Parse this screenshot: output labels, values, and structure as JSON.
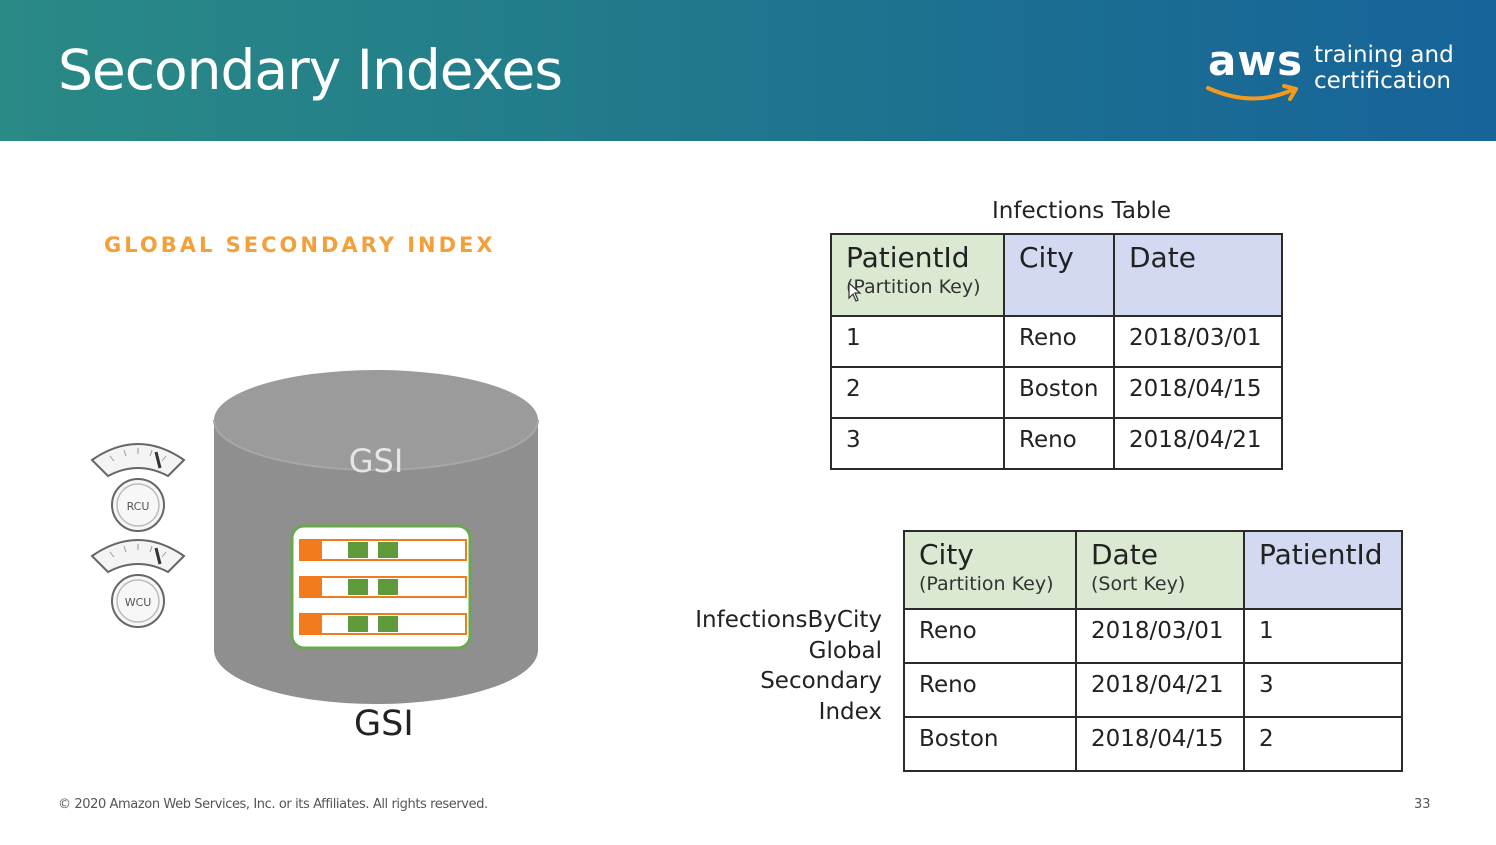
{
  "slide": {
    "title": "Secondary Indexes",
    "section_label": "GLOBAL SECONDARY INDEX",
    "logo": {
      "brand": "aws",
      "line1": "training and",
      "line2": "certification"
    },
    "colors": {
      "header_start": "#2a8a86",
      "header_end": "#17649a",
      "accent_orange": "#f4a03a",
      "cylinder": "#9b9b9b",
      "item_green": "#5e9a3a",
      "item_orange": "#f27b1e"
    },
    "footer": {
      "copyright": "© 2020 Amazon Web Services, Inc. or its Affiliates. All rights reserved.",
      "page_number": "33"
    }
  },
  "diagram": {
    "cylinder_label": "GSI",
    "bottom_label": "GSI",
    "gauges": [
      {
        "label": "RCU"
      },
      {
        "label": "WCU"
      }
    ],
    "icons": [
      "gauge-icon",
      "database-cylinder-icon",
      "table-items-icon"
    ]
  },
  "infections_table": {
    "caption": "Infections Table",
    "headers": [
      {
        "name": "PatientId",
        "sub": "(Partition Key)",
        "style": "green"
      },
      {
        "name": "City",
        "sub": "",
        "style": "blue"
      },
      {
        "name": "Date",
        "sub": "",
        "style": "blue"
      }
    ],
    "rows": [
      [
        "1",
        "Reno",
        "2018/03/01"
      ],
      [
        "2",
        "Boston",
        "2018/04/15"
      ],
      [
        "3",
        "Reno",
        "2018/04/21"
      ]
    ]
  },
  "gsi_table": {
    "caption_lines": [
      "InfectionsByCity",
      "Global",
      "Secondary",
      "Index"
    ],
    "headers": [
      {
        "name": "City",
        "sub": "(Partition Key)",
        "style": "green"
      },
      {
        "name": "Date",
        "sub": "(Sort Key)",
        "style": "green"
      },
      {
        "name": "PatientId",
        "sub": "",
        "style": "blue"
      }
    ],
    "rows": [
      [
        "Reno",
        "2018/03/01",
        "1"
      ],
      [
        "Reno",
        "2018/04/21",
        "3"
      ],
      [
        "Boston",
        "2018/04/15",
        "2"
      ]
    ]
  }
}
